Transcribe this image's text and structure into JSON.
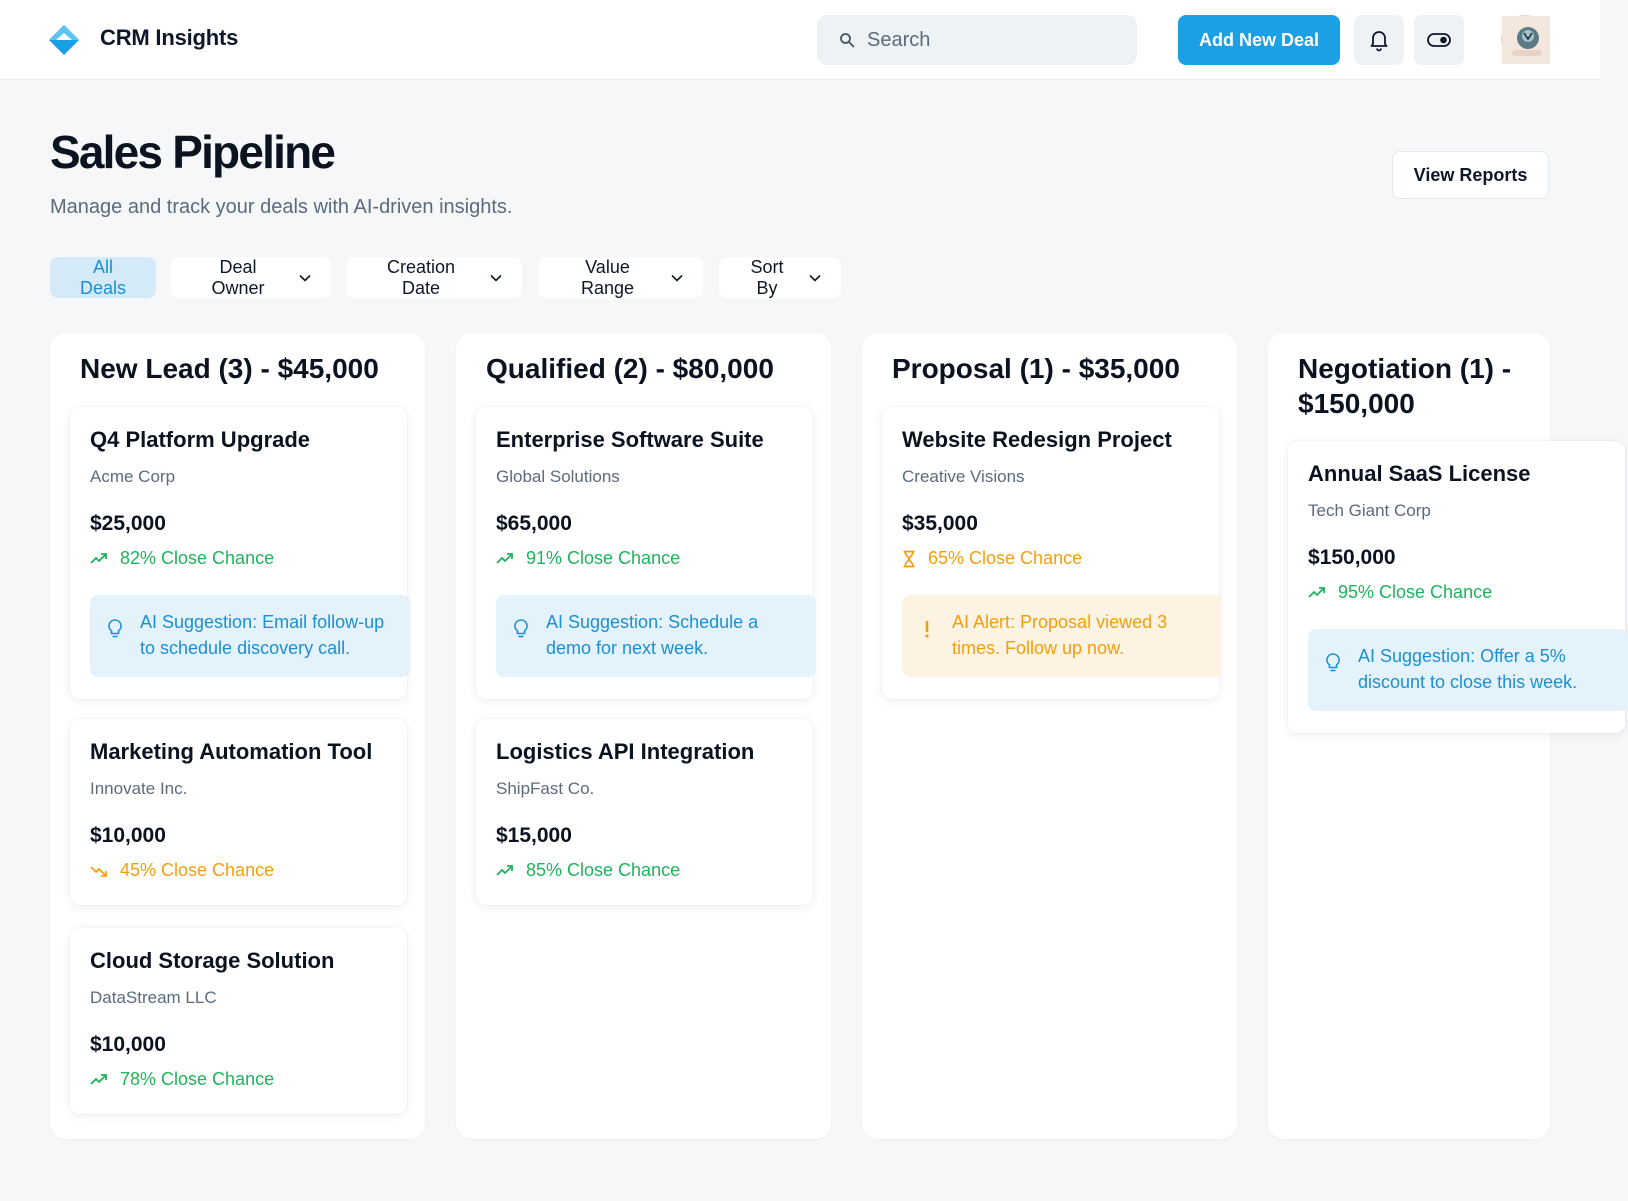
{
  "header": {
    "app_title": "CRM Insights",
    "search_placeholder": "Search",
    "add_deal_label": "Add New Deal",
    "icons": [
      "logo-diamond-icon",
      "search-icon",
      "bell-icon",
      "toggle-icon"
    ],
    "accent_color": "#1ba0e6"
  },
  "page": {
    "title": "Sales Pipeline",
    "subtitle": "Manage and track your deals with AI-driven insights.",
    "view_reports_label": "View Reports"
  },
  "filters": [
    {
      "label": "All Deals",
      "active": true
    },
    {
      "label": "Deal Owner"
    },
    {
      "label": "Creation Date"
    },
    {
      "label": "Value Range"
    },
    {
      "label": "Sort By"
    }
  ],
  "columns": [
    {
      "title": "New Lead (3) - $45,000",
      "cards": [
        {
          "title": "Q4 Platform Upgrade",
          "company": "Acme Corp",
          "value": "$25,000",
          "chance": "82% Close Chance",
          "trend": "up",
          "ai": "AI Suggestion: Email follow-up to schedule discovery call."
        },
        {
          "title": "Marketing Automation Tool",
          "company": "Innovate Inc.",
          "value": "$10,000",
          "chance": "45% Close Chance",
          "trend": "down"
        },
        {
          "title": "Cloud Storage Solution",
          "company": "DataStream LLC",
          "value": "$10,000",
          "chance": "78% Close Chance",
          "trend": "up"
        }
      ]
    },
    {
      "title": "Qualified (2) - $80,000",
      "cards": [
        {
          "title": "Enterprise Software Suite",
          "company": "Global Solutions",
          "value": "$65,000",
          "chance": "91% Close Chance",
          "trend": "up",
          "ai": "AI Suggestion: Schedule a demo for next week."
        },
        {
          "title": "Logistics API Integration",
          "company": "ShipFast Co.",
          "value": "$15,000",
          "chance": "85% Close Chance",
          "trend": "up"
        }
      ]
    },
    {
      "title": "Proposal (1) - $35,000",
      "cards": [
        {
          "title": "Website Redesign Project",
          "company": "Creative Visions",
          "value": "$35,000",
          "chance": "65% Close Chance",
          "trend": "pending",
          "ai": "AI Alert: Proposal viewed 3 times. Follow up now."
        }
      ]
    },
    {
      "title": "Negotiation (1) - $150,000",
      "cards": [
        {
          "title": "Annual SaaS License",
          "company": "Tech Giant Corp",
          "value": "$150,000",
          "chance": "95% Close Chance",
          "trend": "up",
          "ai": "AI Suggestion: Offer a 5% discount to close this week."
        }
      ]
    }
  ]
}
